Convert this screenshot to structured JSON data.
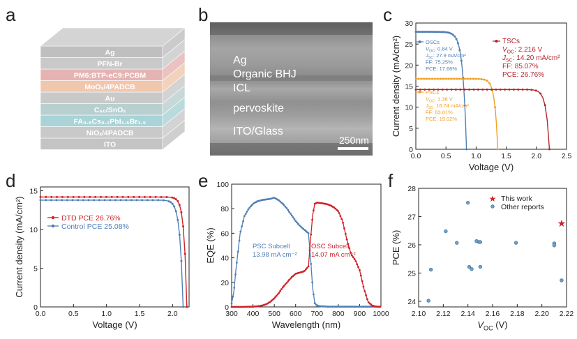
{
  "panels": {
    "a": "a",
    "b": "b",
    "c": "c",
    "d": "d",
    "e": "e",
    "f": "f"
  },
  "stack": {
    "layers": [
      "Ag",
      "PFN-Br",
      "PM6:BTP-eC9:PCBM",
      "MoOₓ/4PADCB",
      "Au",
      "C₆₀/SnOₓ",
      "FA₀.₈Cs₀.₂PbI₁.₅Br₁.₅",
      "NiOₓ/4PADCB",
      "ITO"
    ],
    "colors": [
      "#bfbfbf",
      "#c9c9c9",
      "#e6b3b3",
      "#f0c6ad",
      "#c9c9c9",
      "#b8cfcf",
      "#a9d3d6",
      "#c9c9c9",
      "#c4c4c4"
    ]
  },
  "sem": {
    "labels": [
      "Ag",
      "Organic BHJ",
      "ICL",
      "pervoskite",
      "ITO/Glass"
    ],
    "scalebar": "250nm"
  },
  "colors": {
    "red": "#cc2229",
    "blue": "#4e7fb5",
    "orange": "#f0a020",
    "dark_red": "#b3262d"
  },
  "chart_data": [
    {
      "panel": "c",
      "type": "line",
      "xlabel": "Voltage (V)",
      "ylabel": "Current density (mA/cm²)",
      "xlim": [
        0,
        2.5
      ],
      "ylim": [
        0,
        30
      ],
      "xticks": [
        "0.0",
        "0.5",
        "1.0",
        "1.5",
        "2.0",
        "2.5"
      ],
      "yticks": [
        "0",
        "5",
        "10",
        "15",
        "20",
        "25",
        "30"
      ],
      "series": [
        {
          "name": "OSCs",
          "color": "#4e7fb5",
          "jsc": 27.9,
          "voc": 0.84,
          "ff": 0.7525,
          "legend": [
            "OSCs",
            "V_OC: 0.84 V",
            "J_SC: 27.9 mA/cm²",
            "FF: 75.25%",
            "PCE: 17.66%"
          ]
        },
        {
          "name": "PSCs",
          "color": "#f0a020",
          "jsc": 16.74,
          "voc": 1.36,
          "ff": 0.8361,
          "legend": [
            "PSCs",
            "V_OC: 1.36 V",
            "J_SC: 16.74 mA/cm²",
            "FF: 83.61%",
            "PCE: 19.02%"
          ]
        },
        {
          "name": "TSCs",
          "color": "#b3262d",
          "jsc": 14.2,
          "voc": 2.216,
          "ff": 0.8507,
          "legend": [
            "TSCs",
            "V_OC: 2.216 V",
            "J_SC: 14.20 mA/cm²",
            "FF: 85.07%",
            "PCE: 26.76%"
          ]
        }
      ]
    },
    {
      "panel": "d",
      "type": "line",
      "xlabel": "Voltage (V)",
      "ylabel": "Current density (mA/cm²)",
      "xlim": [
        0,
        2.25
      ],
      "ylim": [
        0,
        15.5
      ],
      "xticks": [
        "0.0",
        "0.5",
        "1.0",
        "1.5",
        "2.0"
      ],
      "yticks": [
        "0",
        "5",
        "10",
        "15"
      ],
      "series": [
        {
          "name": "DTD",
          "label": "DTD    PCE 26.76%",
          "color": "#cc2229",
          "jsc": 14.2,
          "voc": 2.216
        },
        {
          "name": "Control",
          "label": "Control PCE 25.08%",
          "color": "#4e7fb5",
          "jsc": 13.8,
          "voc": 2.16
        }
      ]
    },
    {
      "panel": "e",
      "type": "line",
      "xlabel": "Wavelength (nm)",
      "ylabel": "EQE (%)",
      "xlim": [
        300,
        1000
      ],
      "ylim": [
        0,
        100
      ],
      "xticks": [
        "300",
        "400",
        "500",
        "600",
        "700",
        "800",
        "900",
        "1000"
      ],
      "yticks": [
        "0",
        "20",
        "40",
        "60",
        "80",
        "100"
      ],
      "series": [
        {
          "name": "PSC Subcell",
          "color": "#4e7fb5",
          "label1": "PSC Subcell",
          "label2": "13.98 mA cm⁻²",
          "x": [
            300,
            310,
            320,
            340,
            360,
            380,
            400,
            420,
            440,
            460,
            480,
            500,
            520,
            540,
            560,
            580,
            600,
            620,
            640,
            660,
            670,
            680,
            690,
            700,
            720,
            740,
            760,
            780,
            800,
            850,
            900,
            950,
            1000
          ],
          "y": [
            3,
            12,
            30,
            60,
            74,
            80,
            84,
            86,
            87,
            87.5,
            88,
            89,
            87,
            84,
            80,
            75,
            70,
            66,
            63,
            60,
            40,
            15,
            3,
            1,
            0.5,
            0.3,
            0.2,
            0.2,
            0.2,
            0.2,
            0.2,
            0.2,
            0.2
          ]
        },
        {
          "name": "OSC Subcell",
          "color": "#cc2229",
          "label1": "OSC Subcell",
          "label2": "14.07 mA cm⁻²",
          "x": [
            300,
            350,
            400,
            420,
            440,
            460,
            480,
            500,
            520,
            540,
            560,
            580,
            600,
            620,
            640,
            660,
            670,
            680,
            690,
            700,
            720,
            740,
            760,
            780,
            800,
            820,
            840,
            860,
            880,
            900,
            920,
            940,
            960,
            980,
            1000
          ],
          "y": [
            0,
            0,
            0.2,
            0.5,
            1,
            2,
            4,
            7,
            11,
            16,
            20,
            24,
            27,
            28,
            29,
            33,
            55,
            75,
            84,
            85,
            84.5,
            84,
            83,
            81,
            78,
            70,
            55,
            43,
            38,
            30,
            15,
            4,
            1,
            0.2,
            0
          ]
        }
      ]
    },
    {
      "panel": "f",
      "type": "scatter",
      "xlabel": "V_OC (V)",
      "ylabel": "PCE (%)",
      "xlim": [
        2.1,
        2.22
      ],
      "ylim": [
        23.8,
        28
      ],
      "xticks": [
        "2.10",
        "2.12",
        "2.14",
        "2.16",
        "2.18",
        "2.20",
        "2.22"
      ],
      "yticks": [
        "24",
        "25",
        "26",
        "27",
        "28"
      ],
      "legend": [
        "This work",
        "Other reports"
      ],
      "this_work": {
        "x": 2.216,
        "y": 26.76,
        "color": "#cc2229"
      },
      "other_reports": {
        "color": "#6fa0c8",
        "x": [
          2.108,
          2.11,
          2.122,
          2.131,
          2.14,
          2.141,
          2.143,
          2.147,
          2.149,
          2.15,
          2.15,
          2.179,
          2.21,
          2.21,
          2.216
        ],
        "y": [
          24.02,
          25.12,
          26.48,
          26.07,
          27.49,
          25.22,
          25.14,
          26.13,
          26.1,
          25.22,
          26.1,
          26.07,
          26.05,
          25.98,
          24.74
        ]
      }
    }
  ]
}
